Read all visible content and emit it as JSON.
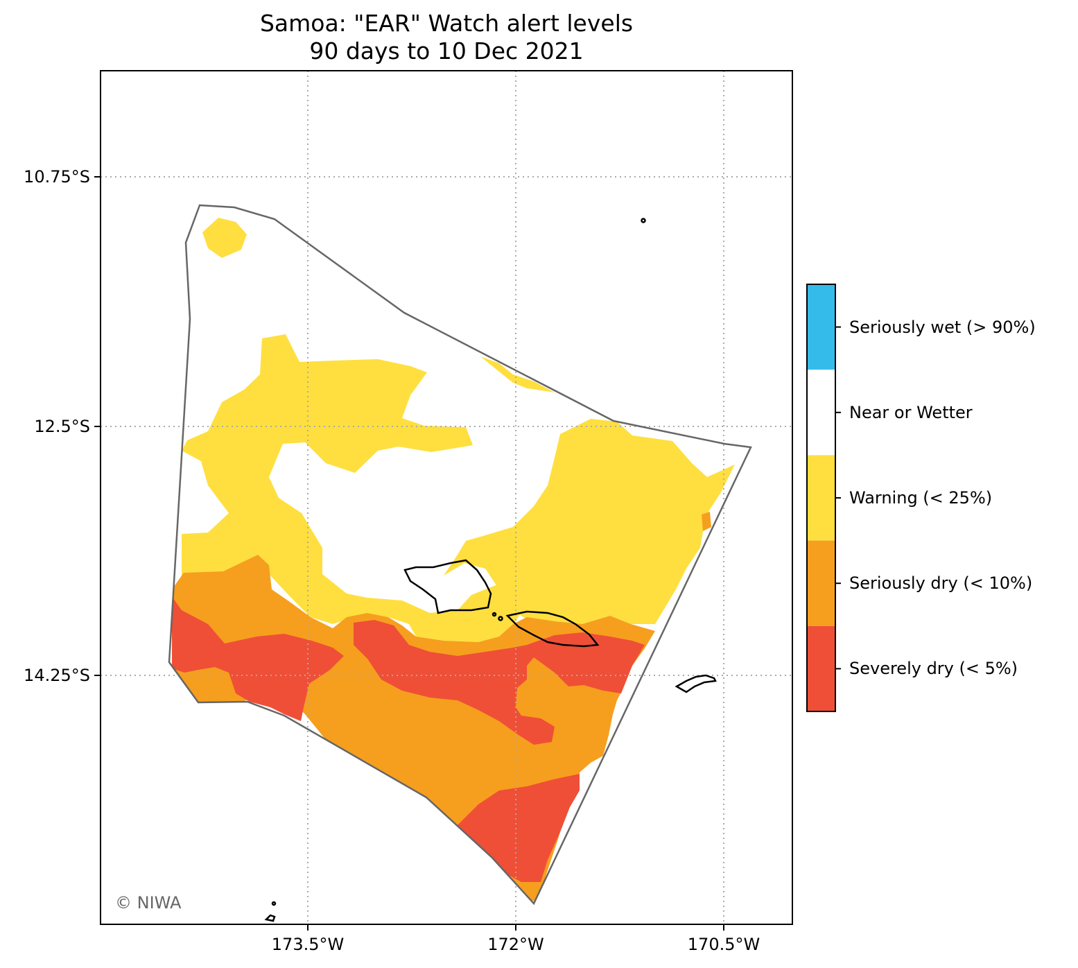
{
  "title": "Samoa: \"EAR\" Watch alert levels",
  "subtitle": "90 days to 10 Dec 2021",
  "axes": {
    "x_ticks": [
      "173.5°W",
      "172°W",
      "170.5°W"
    ],
    "y_ticks": [
      "10.75°S",
      "12.5°S",
      "14.25°S"
    ],
    "grid": true
  },
  "legend": {
    "placement": "right colorbar",
    "items": [
      {
        "label": "Seriously wet (> 90%)",
        "color": "#35bbe9"
      },
      {
        "label": "Near or Wetter",
        "color": "#ffffff"
      },
      {
        "label": "Warning (< 25%)",
        "color": "#fedf3f"
      },
      {
        "label": "Seriously dry (< 10%)",
        "color": "#f69f1e"
      },
      {
        "label": "Severely dry (< 5%)",
        "color": "#ef4f37"
      }
    ]
  },
  "colors": {
    "eez_outline": "#666666",
    "coastline": "#000000",
    "grid": "#aaaaaa"
  },
  "credit": "© NIWA"
}
